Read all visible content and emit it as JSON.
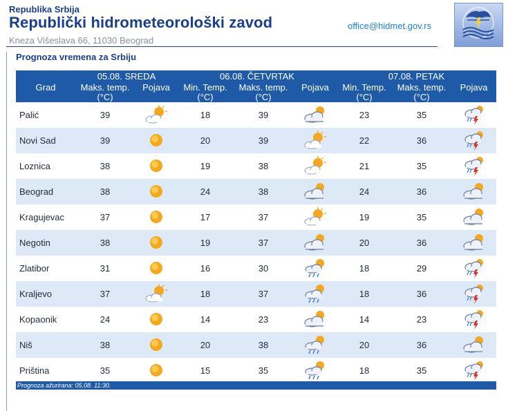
{
  "header": {
    "org_small": "Republika Srbija",
    "org_name": "Republički hidrometeorološki zavod",
    "address": "Kneza Višeslava 66, 11030 Beograd",
    "email": "office@hidmet.gov.rs"
  },
  "section_title": "Prognoza vremena za Srbiju",
  "table": {
    "grad_label": "Grad",
    "days": [
      {
        "date": "05.08. SREDA",
        "cols": [
          "Maks. temp.",
          "Pojava"
        ]
      },
      {
        "date": "06.08. ČETVRTAK",
        "cols": [
          "Min. Temp.",
          "Maks. temp.",
          "Pojava"
        ]
      },
      {
        "date": "07.08. PETAK",
        "cols": [
          "Min. Temp.",
          "Maks. temp.",
          "Pojava"
        ]
      }
    ],
    "unit": "(°C)",
    "rows": [
      {
        "city": "Palić",
        "d1_max": "39",
        "d1_icon": "partly-sunny-icon",
        "d2_min": "18",
        "d2_max": "39",
        "d2_icon": "cloudy-sun-icon",
        "d3_min": "23",
        "d3_max": "35",
        "d3_icon": "thunderstorm-icon"
      },
      {
        "city": "Novi Sad",
        "d1_max": "39",
        "d1_icon": "sunny-icon",
        "d2_min": "20",
        "d2_max": "39",
        "d2_icon": "partly-sunny-icon",
        "d3_min": "22",
        "d3_max": "36",
        "d3_icon": "thunderstorm-icon"
      },
      {
        "city": "Loznica",
        "d1_max": "38",
        "d1_icon": "sunny-icon",
        "d2_min": "19",
        "d2_max": "38",
        "d2_icon": "partly-sunny-icon",
        "d3_min": "21",
        "d3_max": "35",
        "d3_icon": "thunderstorm-icon"
      },
      {
        "city": "Beograd",
        "d1_max": "38",
        "d1_icon": "sunny-icon",
        "d2_min": "24",
        "d2_max": "38",
        "d2_icon": "cloudy-sun-icon",
        "d3_min": "24",
        "d3_max": "36",
        "d3_icon": "cloudy-sun-icon"
      },
      {
        "city": "Kragujevac",
        "d1_max": "37",
        "d1_icon": "sunny-icon",
        "d2_min": "17",
        "d2_max": "37",
        "d2_icon": "partly-sunny-icon",
        "d3_min": "19",
        "d3_max": "35",
        "d3_icon": "cloudy-sun-icon"
      },
      {
        "city": "Negotin",
        "d1_max": "38",
        "d1_icon": "sunny-icon",
        "d2_min": "19",
        "d2_max": "37",
        "d2_icon": "cloudy-sun-icon",
        "d3_min": "20",
        "d3_max": "36",
        "d3_icon": "cloudy-sun-icon"
      },
      {
        "city": "Zlatibor",
        "d1_max": "31",
        "d1_icon": "sunny-icon",
        "d2_min": "16",
        "d2_max": "30",
        "d2_icon": "rain-sun-icon",
        "d3_min": "18",
        "d3_max": "29",
        "d3_icon": "thunderstorm-icon"
      },
      {
        "city": "Kraljevo",
        "d1_max": "37",
        "d1_icon": "partly-sunny-icon",
        "d2_min": "18",
        "d2_max": "37",
        "d2_icon": "rain-sun-icon",
        "d3_min": "18",
        "d3_max": "36",
        "d3_icon": "thunderstorm-icon"
      },
      {
        "city": "Kopaonik",
        "d1_max": "24",
        "d1_icon": "sunny-icon",
        "d2_min": "14",
        "d2_max": "23",
        "d2_icon": "cloudy-sun-icon",
        "d3_min": "14",
        "d3_max": "23",
        "d3_icon": "thunderstorm-icon"
      },
      {
        "city": "Niš",
        "d1_max": "38",
        "d1_icon": "sunny-icon",
        "d2_min": "20",
        "d2_max": "38",
        "d2_icon": "rain-sun-icon",
        "d3_min": "20",
        "d3_max": "36",
        "d3_icon": "cloudy-sun-icon"
      },
      {
        "city": "Priština",
        "d1_max": "35",
        "d1_icon": "sunny-icon",
        "d2_min": "15",
        "d2_max": "35",
        "d2_icon": "rain-sun-icon",
        "d3_min": "18",
        "d3_max": "35",
        "d3_icon": "thunderstorm-icon"
      }
    ]
  },
  "footer": "Prognoza ažurirana:  05.08.  11:30.",
  "colors": {
    "header_bg": "#1e5aa8",
    "row_alt": "#dde9f6",
    "title": "#1a3f8a"
  }
}
